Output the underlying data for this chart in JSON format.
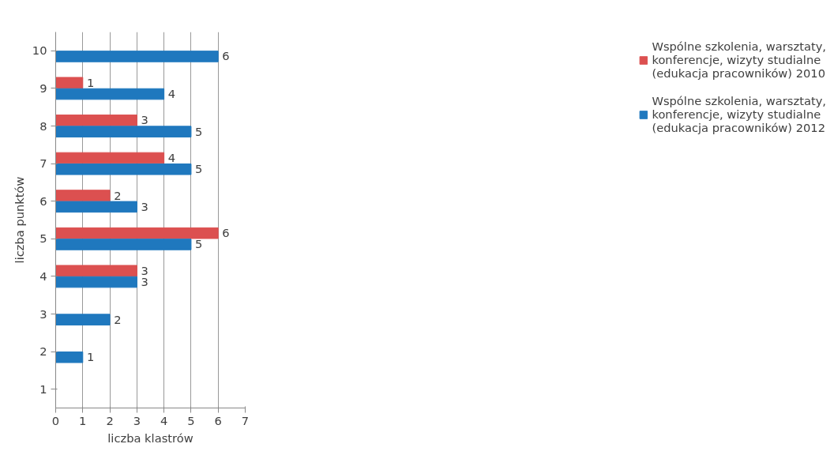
{
  "chart_data": {
    "type": "bar",
    "orientation": "horizontal",
    "xlabel": "liczba klastrów",
    "ylabel": "liczba punktów",
    "categories": [
      "10",
      "9",
      "8",
      "7",
      "6",
      "5",
      "4",
      "3",
      "2",
      "1"
    ],
    "series": [
      {
        "name": "Wspólne szkolenia, warsztaty, konferencje, wizyty studialne (edukacja pracowników) 2010",
        "color": "#dc5050",
        "values": [
          null,
          1,
          3,
          4,
          2,
          6,
          3,
          null,
          null,
          null
        ]
      },
      {
        "name": "Wspólne szkolenia, warsztaty, konferencje, wizyty studialne (edukacja pracowników) 2012",
        "color": "#1f78be",
        "values": [
          6,
          4,
          5,
          5,
          3,
          5,
          3,
          2,
          1,
          null
        ]
      }
    ],
    "xlim": [
      0,
      7
    ],
    "xticks": [
      0,
      1,
      2,
      3,
      4,
      5,
      6,
      7
    ],
    "grid": "x",
    "legend": "right",
    "data_labels": true
  }
}
